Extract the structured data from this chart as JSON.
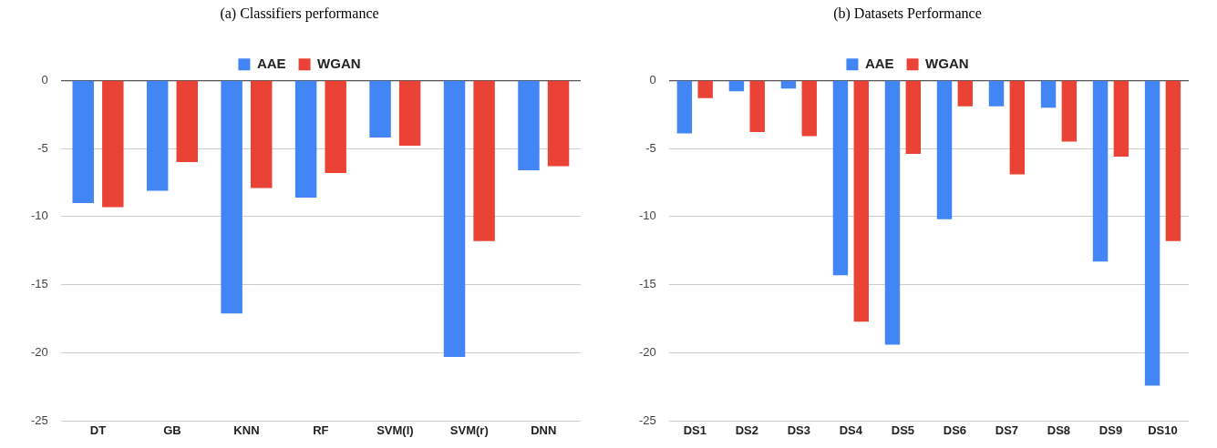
{
  "chart_data": [
    {
      "type": "bar",
      "title": "(a) Classifiers performance",
      "categories": [
        "DT",
        "GB",
        "KNN",
        "RF",
        "SVM(l)",
        "SVM(r)",
        "DNN"
      ],
      "series": [
        {
          "name": "AAE",
          "color": "#4285f4",
          "values": [
            -9.0,
            -8.1,
            -17.1,
            -8.6,
            -4.2,
            -20.3,
            -6.6
          ]
        },
        {
          "name": "WGAN",
          "color": "#ea4335",
          "values": [
            -9.3,
            -6.0,
            -7.9,
            -6.8,
            -4.8,
            -11.8,
            -6.3
          ]
        }
      ],
      "ylim": [
        -25,
        0
      ],
      "yticks": [
        -25,
        -20,
        -15,
        -10,
        -5,
        0
      ],
      "grid": "y",
      "legend": "top"
    },
    {
      "type": "bar",
      "title": "(b) Datasets Performance",
      "categories": [
        "DS1",
        "DS2",
        "DS3",
        "DS4",
        "DS5",
        "DS6",
        "DS7",
        "DS8",
        "DS9",
        "DS10"
      ],
      "series": [
        {
          "name": "AAE",
          "color": "#4285f4",
          "values": [
            -3.9,
            -0.8,
            -0.6,
            -14.3,
            -19.4,
            -10.2,
            -1.9,
            -2.0,
            -13.3,
            -22.4
          ]
        },
        {
          "name": "WGAN",
          "color": "#ea4335",
          "values": [
            -1.3,
            -3.8,
            -4.1,
            -17.7,
            -5.4,
            -1.9,
            -6.9,
            -4.5,
            -5.6,
            -11.8
          ]
        }
      ],
      "ylim": [
        -25,
        0
      ],
      "yticks": [
        -25,
        -20,
        -15,
        -10,
        -5,
        0
      ],
      "grid": "y",
      "legend": "top"
    }
  ]
}
